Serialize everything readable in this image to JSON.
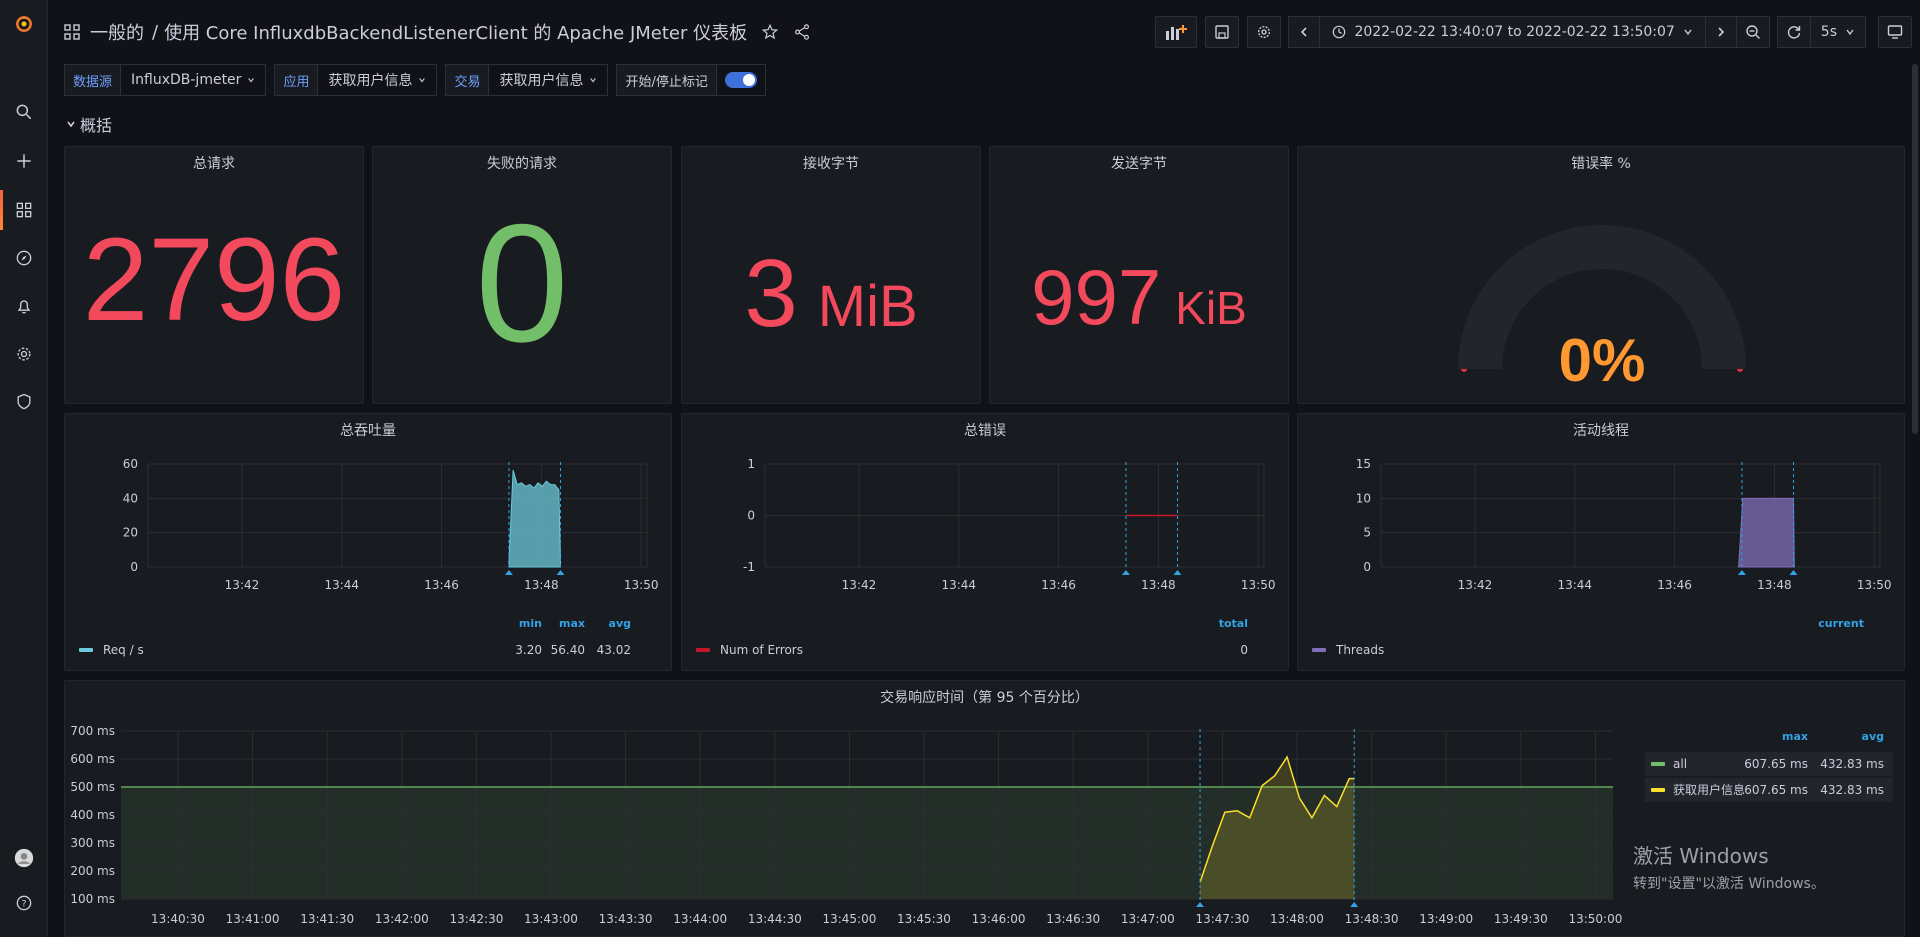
{
  "breadcrumb": {
    "folder": "一般的",
    "separator": "/",
    "dashboard": "使用 Core InfluxdbBackendListenerClient 的 Apache JMeter 仪表板"
  },
  "time_range": {
    "label": "2022-02-22 13:40:07 to 2022-02-22 13:50:07",
    "refresh": "5s"
  },
  "variables": [
    {
      "label": "数据源",
      "value": "InfluxDB-jmeter"
    },
    {
      "label": "应用",
      "value": "获取用户信息"
    },
    {
      "label": "交易",
      "value": "获取用户信息"
    }
  ],
  "annotation_toggle": {
    "label": "开始/停止标记",
    "on": true
  },
  "row": {
    "title": "概括"
  },
  "stats": {
    "total_requests": {
      "title": "总请求",
      "value": "2796"
    },
    "failed_requests": {
      "title": "失败的请求",
      "value": "0"
    },
    "received_bytes": {
      "title": "接收字节",
      "value": "3",
      "unit": "MiB"
    },
    "sent_bytes": {
      "title": "发送字节",
      "value": "997",
      "unit": "KiB"
    },
    "error_rate": {
      "title": "错误率 %",
      "value": "0%",
      "gauge_fraction": 0
    }
  },
  "colors": {
    "red": "#f2495c",
    "green": "#73bf69",
    "orange": "#ff9830",
    "teal": "#6ccadc",
    "purple": "#806eb7",
    "yellow": "#fade2a",
    "darkred": "#c4162a"
  },
  "chart_data": [
    {
      "type": "area",
      "title": "总吞吐量",
      "x_ticks": [
        "13:42",
        "13:44",
        "13:46",
        "13:48",
        "13:50"
      ],
      "y_ticks": [
        "60",
        "40",
        "20",
        "0"
      ],
      "ylim": [
        0,
        60
      ],
      "xlim": [
        "13:40:07",
        "13:50:07"
      ],
      "annotations": [
        "13:47:21",
        "13:48:23"
      ],
      "series": [
        {
          "name": "Req / s",
          "color": "#6ccadc",
          "x": [
            "13:47:21",
            "13:47:26",
            "13:47:31",
            "13:47:36",
            "13:47:41",
            "13:47:46",
            "13:47:51",
            "13:47:56",
            "13:48:01",
            "13:48:06",
            "13:48:11",
            "13:48:16",
            "13:48:21",
            "13:48:23"
          ],
          "values": [
            3.2,
            56.4,
            48,
            49,
            47,
            48,
            46,
            49,
            47,
            50,
            48,
            48,
            45,
            3.2
          ]
        }
      ],
      "legend_headers": [
        "min",
        "max",
        "avg"
      ],
      "legend_values": [
        "3.20",
        "56.40",
        "43.02"
      ]
    },
    {
      "type": "line",
      "title": "总错误",
      "x_ticks": [
        "13:42",
        "13:44",
        "13:46",
        "13:48",
        "13:50"
      ],
      "y_ticks": [
        "1",
        "0",
        "-1"
      ],
      "ylim": [
        -1,
        1
      ],
      "xlim": [
        "13:40:07",
        "13:50:07"
      ],
      "annotations": [
        "13:47:21",
        "13:48:23"
      ],
      "series": [
        {
          "name": "Num of Errors",
          "color": "#c4162a",
          "x": [
            "13:47:21",
            "13:48:23"
          ],
          "values": [
            0,
            0
          ]
        }
      ],
      "legend_headers": [
        "total"
      ],
      "legend_values": [
        "0"
      ]
    },
    {
      "type": "area",
      "title": "活动线程",
      "x_ticks": [
        "13:42",
        "13:44",
        "13:46",
        "13:48",
        "13:50"
      ],
      "y_ticks": [
        "15",
        "10",
        "5",
        "0"
      ],
      "ylim": [
        0,
        15
      ],
      "xlim": [
        "13:40:07",
        "13:50:07"
      ],
      "annotations": [
        "13:47:21",
        "13:48:23"
      ],
      "series": [
        {
          "name": "Threads",
          "color": "#806eb7",
          "x": [
            "13:47:17",
            "13:47:22",
            "13:48:23",
            "13:48:24"
          ],
          "values": [
            0,
            10,
            10,
            0
          ]
        }
      ],
      "legend_headers": [
        "current"
      ],
      "legend_values": [
        ""
      ]
    },
    {
      "type": "line",
      "title": "交易响应时间（第 95 个百分比）",
      "x_ticks": [
        "13:40:30",
        "13:41:00",
        "13:41:30",
        "13:42:00",
        "13:42:30",
        "13:43:00",
        "13:43:30",
        "13:44:00",
        "13:44:30",
        "13:45:00",
        "13:45:30",
        "13:46:00",
        "13:46:30",
        "13:47:00",
        "13:47:30",
        "13:48:00",
        "13:48:30",
        "13:49:00",
        "13:49:30",
        "13:50:00"
      ],
      "y_ticks": [
        "700 ms",
        "600 ms",
        "500 ms",
        "400 ms",
        "300 ms",
        "200 ms",
        "100 ms"
      ],
      "ylim": [
        100,
        700
      ],
      "threshold": 500,
      "annotations": [
        "13:47:21",
        "13:48:23"
      ],
      "series": [
        {
          "name": "all",
          "color": "#73bf69",
          "max": "607.65 ms",
          "avg": "432.83 ms"
        },
        {
          "name": "获取用户信息",
          "color": "#fade2a",
          "max": "607.65 ms",
          "avg": "432.83 ms",
          "x": [
            "13:47:21",
            "13:47:26",
            "13:47:31",
            "13:47:36",
            "13:47:41",
            "13:47:46",
            "13:47:51",
            "13:47:56",
            "13:48:01",
            "13:48:06",
            "13:48:11",
            "13:48:16",
            "13:48:21",
            "13:48:23"
          ],
          "values": [
            160,
            290,
            410,
            415,
            390,
            505,
            540,
            607,
            460,
            390,
            470,
            430,
            530,
            530
          ]
        }
      ],
      "legend_headers": [
        "max",
        "avg"
      ]
    }
  ],
  "watermark": {
    "line1": "激活 Windows",
    "line2": "转到\"设置\"以激活 Windows。"
  }
}
